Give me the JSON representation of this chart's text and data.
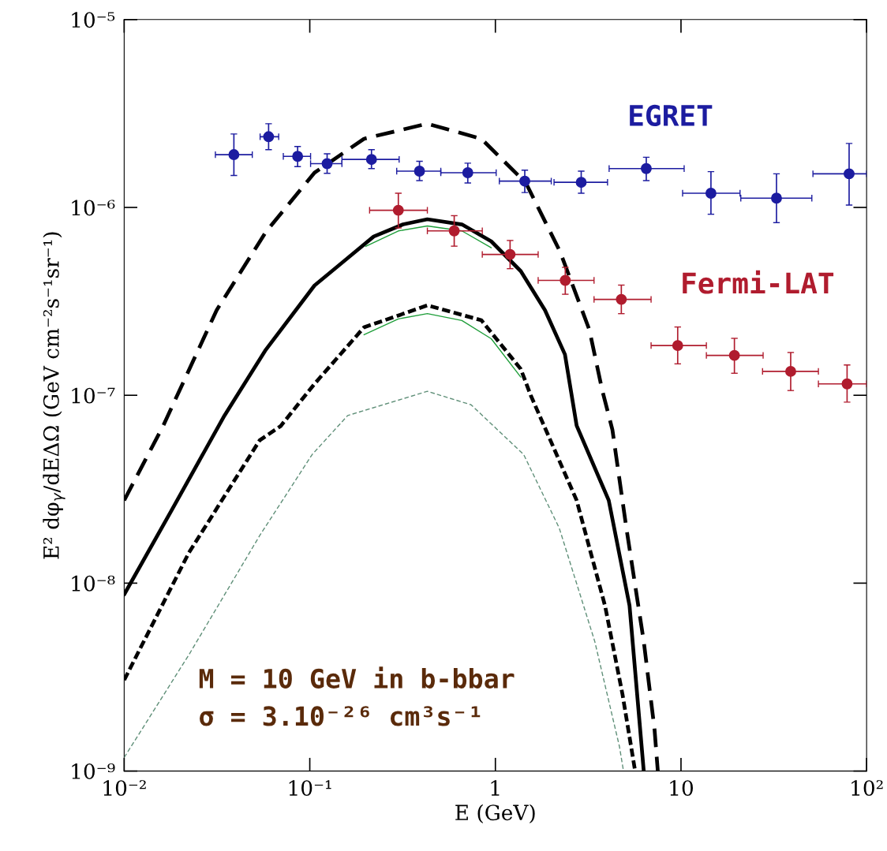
{
  "chart_data": {
    "type": "line",
    "xlabel": "E (GeV)",
    "ylabel": "E² dφ$_{γ}$/dEΔΩ (GeV cm⁻²s⁻¹sr⁻¹)",
    "log": "xy",
    "grid": false,
    "legend": false,
    "xlim": [
      0.01,
      100
    ],
    "ylim": [
      1e-09,
      1e-05
    ],
    "xticks": [
      {
        "value": 0.01,
        "label": "10⁻²"
      },
      {
        "value": 0.1,
        "label": "10⁻¹"
      },
      1,
      10,
      {
        "value": 100,
        "label": "10²"
      }
    ],
    "yticks": [
      {
        "value": 1e-09,
        "label": "10⁻⁹"
      },
      {
        "value": 1e-08,
        "label": "10⁻⁸"
      },
      {
        "value": 1e-07,
        "label": "10⁻⁷"
      },
      {
        "value": 1e-06,
        "label": "10⁻⁶"
      },
      {
        "value": 1e-05,
        "label": "10⁻⁵"
      }
    ],
    "series": [
      {
        "type": "line",
        "line_style": "dashed",
        "color": "#000000",
        "x": [
          0.01,
          0.0162,
          0.0315,
          0.058,
          0.106,
          0.196,
          0.43,
          0.84,
          1.46,
          2.23,
          3.21,
          3.75,
          4.27,
          5.08,
          6.3,
          7.2,
          7.5
        ],
        "values": [
          2.76e-08,
          6.86e-08,
          2.84e-07,
          7.41e-07,
          1.53e-06,
          2.32e-06,
          2.79e-06,
          2.32e-06,
          1.35e-06,
          5.82e-07,
          2.23e-07,
          1.08e-07,
          6.56e-08,
          1.96e-08,
          4.9e-09,
          1.67e-09,
          1e-09
        ]
      },
      {
        "type": "line",
        "line_style": "solid",
        "color": "#000000",
        "x": [
          0.01,
          0.018,
          0.0347,
          0.058,
          0.106,
          0.153,
          0.221,
          0.318,
          0.43,
          0.66,
          0.95,
          1.37,
          1.85,
          2.37,
          2.74,
          4.08,
          5.28,
          6.3
        ],
        "values": [
          8.7e-09,
          2.44e-08,
          7.8e-08,
          1.75e-07,
          3.84e-07,
          5.18e-07,
          7e-07,
          8.12e-07,
          8.65e-07,
          8.12e-07,
          6.6e-07,
          4.58e-07,
          2.84e-07,
          1.65e-07,
          6.9e-08,
          2.76e-08,
          7.6e-09,
          1e-09
        ]
      },
      {
        "type": "line",
        "line_style": "solid",
        "color": "#1f9e3a",
        "x": [
          0.2,
          0.3,
          0.43,
          0.66,
          0.95
        ],
        "values": [
          6.2e-07,
          7.5e-07,
          7.97e-07,
          7.5e-07,
          6.1e-07
        ]
      },
      {
        "type": "line",
        "line_style": "dashed",
        "color": "#000000",
        "x": [
          0.01,
          0.0223,
          0.0537,
          0.0697,
          0.106,
          0.196,
          0.43,
          0.84,
          1.37,
          1.55,
          2.74,
          3.9,
          4.84,
          5.66
        ],
        "values": [
          3.05e-09,
          1.45e-08,
          5.76e-08,
          6.86e-08,
          1.15e-07,
          2.3e-07,
          3.01e-07,
          2.51e-07,
          1.38e-07,
          1e-07,
          2.76e-08,
          7.55e-09,
          2.56e-09,
          1e-09
        ]
      },
      {
        "type": "line",
        "line_style": "solid",
        "color": "#1f9e3a",
        "x": [
          0.196,
          0.3,
          0.43,
          0.66,
          0.95,
          1.37
        ],
        "values": [
          2.1e-07,
          2.55e-07,
          2.72e-07,
          2.5e-07,
          2e-07,
          1.25e-07
        ]
      },
      {
        "type": "line",
        "line_style": "dashed",
        "color": "#5f8f78",
        "x": [
          0.01,
          0.0223,
          0.0537,
          0.103,
          0.16,
          0.43,
          0.74,
          1.42,
          2.21,
          3.43,
          4.66,
          4.9
        ],
        "values": [
          1.18e-09,
          4.15e-09,
          1.79e-08,
          4.84e-08,
          7.8e-08,
          1.05e-07,
          8.9e-08,
          4.84e-08,
          1.96e-08,
          4.9e-09,
          1.35e-09,
          1e-09
        ]
      },
      {
        "type": "scatter",
        "name": "EGRET",
        "marker": "circle",
        "color": "#1c1ca0",
        "x": [
          0.039,
          0.06,
          0.086,
          0.124,
          0.215,
          0.39,
          0.71,
          1.44,
          2.9,
          6.5,
          14.5,
          32.7,
          80.5
        ],
        "values": [
          1.91e-06,
          2.38e-06,
          1.87e-06,
          1.71e-06,
          1.8e-06,
          1.56e-06,
          1.53e-06,
          1.38e-06,
          1.36e-06,
          1.61e-06,
          1.19e-06,
          1.12e-06,
          1.51e-06
        ],
        "errors": [
          [
            1.48e-06,
            2.46e-06
          ],
          [
            2.03e-06,
            2.79e-06
          ],
          [
            1.65e-06,
            2.11e-06
          ],
          [
            1.52e-06,
            1.93e-06
          ],
          [
            1.61e-06,
            2.03e-06
          ],
          [
            1.39e-06,
            1.76e-06
          ],
          [
            1.35e-06,
            1.72e-06
          ],
          [
            1.2e-06,
            1.58e-06
          ],
          [
            1.19e-06,
            1.56e-06
          ],
          [
            1.39e-06,
            1.85e-06
          ],
          [
            9.2e-07,
            1.55e-06
          ],
          [
            8.3e-07,
            1.51e-06
          ],
          [
            1.03e-06,
            2.19e-06
          ]
        ],
        "xerrors": [
          [
            0.031,
            0.049
          ],
          [
            0.054,
            0.068
          ],
          [
            0.072,
            0.101
          ],
          [
            0.101,
            0.149
          ],
          [
            0.149,
            0.303
          ],
          [
            0.294,
            0.508
          ],
          [
            0.508,
            1.01
          ],
          [
            1.05,
            2.0
          ],
          [
            2.07,
            4.02
          ],
          [
            4.1,
            10.4
          ],
          [
            10.2,
            20.8
          ],
          [
            21,
            50.7
          ],
          [
            51.4,
            100
          ]
        ]
      },
      {
        "type": "scatter",
        "name": "Fermi-LAT",
        "marker": "circle",
        "color": "#b01c2e",
        "x": [
          0.3,
          0.6,
          1.2,
          2.38,
          4.77,
          9.6,
          19.4,
          39,
          78.5
        ],
        "values": [
          9.66e-07,
          7.5e-07,
          5.62e-07,
          4.09e-07,
          3.24e-07,
          1.84e-07,
          1.63e-07,
          1.34e-07,
          1.15e-07
        ],
        "errors": [
          [
            7.78e-07,
            1.19e-06
          ],
          [
            6.22e-07,
            9.04e-07
          ],
          [
            4.72e-07,
            6.67e-07
          ],
          [
            3.45e-07,
            4.8e-07
          ],
          [
            2.72e-07,
            3.86e-07
          ],
          [
            1.47e-07,
            2.31e-07
          ],
          [
            1.31e-07,
            2.01e-07
          ],
          [
            1.06e-07,
            1.69e-07
          ],
          [
            9.2e-08,
            1.45e-07
          ]
        ],
        "xerrors": [
          [
            0.21,
            0.43
          ],
          [
            0.43,
            0.85
          ],
          [
            0.85,
            1.7
          ],
          [
            1.7,
            3.4
          ],
          [
            3.4,
            6.9
          ],
          [
            6.9,
            13.7
          ],
          [
            13.7,
            27.7
          ],
          [
            27.5,
            55
          ],
          [
            55,
            100
          ]
        ]
      }
    ],
    "annotations": [
      "M = 10 GeV in b-bbar",
      "σ = 3.10⁻²⁶ cm³s⁻¹"
    ]
  }
}
